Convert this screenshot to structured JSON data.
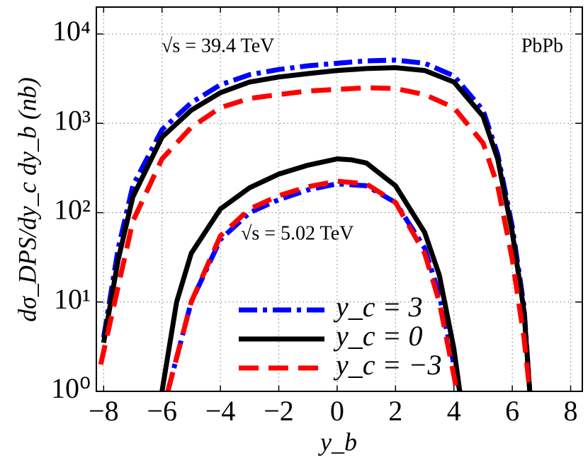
{
  "chart_data": {
    "type": "line",
    "x_label": "y_b",
    "y_label": "dσ_DPS/dy_c dy_b (nb)",
    "annotations": [
      "√s = 39.4 TeV",
      "√s = 5.02 TeV",
      "PbPb"
    ],
    "log_scale_y": true,
    "grid": true,
    "legend_position": "lower center",
    "xlim": [
      -8.25,
      8.4
    ],
    "ylim": [
      1,
      20000
    ],
    "xticks": [
      {
        "value": -8,
        "label": "−8"
      },
      {
        "value": -6,
        "label": "−6"
      },
      {
        "value": -4,
        "label": "−4"
      },
      {
        "value": -2,
        "label": "−2"
      },
      0,
      2,
      4,
      6,
      8
    ],
    "yticks": [
      {
        "value": 1,
        "label": "10⁰"
      },
      {
        "value": 10,
        "label": "10¹"
      },
      {
        "value": 100,
        "label": "10²"
      },
      {
        "value": 1000,
        "label": "10³"
      },
      {
        "value": 10000,
        "label": "10⁴"
      }
    ],
    "groups": [
      {
        "label": "√s = 39.4 TeV",
        "series": [
          {
            "name": "y_c = 3",
            "color": "#0000ff",
            "style": "dashdot",
            "x": [
              -8,
              -7.5,
              -7,
              -6,
              -5,
              -4,
              -3,
              -2,
              -1,
              0,
              1,
              2,
              3,
              4,
              5,
              5.5,
              6,
              6.4,
              6.6
            ],
            "values": [
              4,
              40,
              200,
              850,
              1700,
              2700,
              3500,
              4000,
              4400,
              4700,
              5000,
              5100,
              4700,
              3400,
              1400,
              450,
              70,
              9,
              1
            ]
          },
          {
            "name": "y_c = 0",
            "color": "#000000",
            "style": "solid",
            "x": [
              -8,
              -7.5,
              -7,
              -6,
              -5,
              -4,
              -3,
              -2,
              -1,
              0,
              1,
              2,
              3,
              4,
              5,
              5.5,
              6,
              6.4,
              6.6
            ],
            "values": [
              3.5,
              30,
              150,
              700,
              1400,
              2200,
              2900,
              3300,
              3600,
              3900,
              4100,
              4200,
              3900,
              2900,
              1200,
              400,
              60,
              8,
              1
            ]
          },
          {
            "name": "y_c = −3",
            "color": "#ff0000",
            "style": "dashed",
            "x": [
              -8.1,
              -7.5,
              -7,
              -6,
              -5,
              -4,
              -3,
              -2,
              -1,
              0,
              1,
              2,
              3,
              4,
              5,
              5.5,
              6,
              6.4,
              6.6
            ],
            "values": [
              2,
              15,
              80,
              400,
              900,
              1500,
              1900,
              2100,
              2300,
              2400,
              2500,
              2450,
              2100,
              1500,
              600,
              200,
              30,
              4,
              1
            ]
          }
        ]
      },
      {
        "label": "√s = 5.02 TeV",
        "series": [
          {
            "name": "y_c = 3",
            "color": "#0000ff",
            "style": "dashdot",
            "x": [
              -5.8,
              -5,
              -4,
              -3,
              -2,
              -1,
              0,
              1,
              2,
              3,
              3.5,
              4,
              4.2
            ],
            "values": [
              1,
              10,
              50,
              100,
              140,
              180,
              210,
              200,
              130,
              40,
              12,
              2,
              1
            ]
          },
          {
            "name": "y_c = 0",
            "color": "#000000",
            "style": "solid",
            "x": [
              -6,
              -5.5,
              -5,
              -4,
              -3,
              -2,
              -1,
              0,
              0.5,
              1,
              2,
              3,
              3.5,
              4,
              4.2
            ],
            "values": [
              1,
              10,
              35,
              110,
              190,
              270,
              340,
              400,
              390,
              360,
              200,
              60,
              20,
              3,
              1
            ]
          },
          {
            "name": "y_c = −3",
            "color": "#ff0000",
            "style": "dashed",
            "x": [
              -5.8,
              -5,
              -4,
              -3,
              -2,
              -1,
              0,
              1,
              2,
              3,
              3.5,
              4,
              4.1
            ],
            "values": [
              1,
              10,
              55,
              110,
              155,
              195,
              225,
              210,
              130,
              35,
              10,
              1.5,
              1
            ]
          }
        ]
      }
    ]
  }
}
